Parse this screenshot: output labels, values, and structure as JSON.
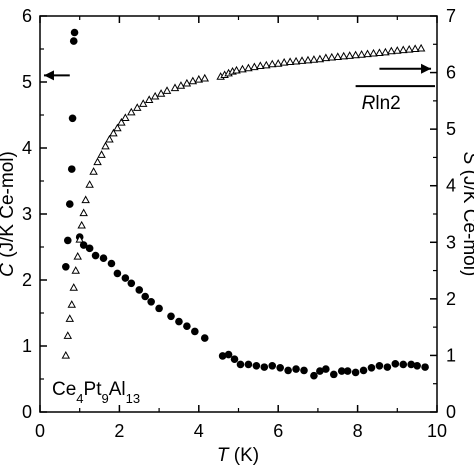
{
  "chart_data": [
    {
      "type": "scatter",
      "title": "",
      "xlabel": {
        "symbol": "T",
        "unit": " (K)"
      },
      "xlim": [
        0,
        10
      ],
      "x_ticks": [
        0,
        2,
        4,
        6,
        8,
        10
      ],
      "grid": false,
      "left_axis": {
        "label": {
          "main": "C",
          "unit": " (J/K Ce-mol)"
        },
        "lim": [
          0,
          6
        ],
        "ticks": [
          0,
          1,
          2,
          3,
          4,
          5,
          6
        ]
      },
      "right_axis": {
        "label": {
          "main": "S",
          "unit": " (J/K Ce-mol)"
        },
        "lim": [
          0,
          7
        ],
        "ticks": [
          0,
          1,
          2,
          3,
          4,
          5,
          6,
          7
        ]
      },
      "series": [
        {
          "marker": "filled-circle",
          "axis": "left",
          "color": "#000000",
          "x": [
            0.65,
            0.7,
            0.75,
            0.8,
            0.82,
            0.85,
            0.87,
            1.0,
            1.1,
            1.25,
            1.4,
            1.6,
            1.8,
            1.95,
            2.15,
            2.3,
            2.5,
            2.65,
            2.8,
            3.0,
            3.3,
            3.5,
            3.7,
            3.9,
            4.15,
            4.6,
            4.75,
            4.9,
            5.05,
            5.25,
            5.45,
            5.65,
            5.85,
            6.05,
            6.25,
            6.45,
            6.65,
            6.9,
            7.05,
            7.2,
            7.4,
            7.6,
            7.75,
            7.95,
            8.15,
            8.35,
            8.55,
            8.75,
            8.95,
            9.15,
            9.35,
            9.5,
            9.7
          ],
          "y": [
            2.2,
            2.6,
            3.15,
            3.68,
            4.45,
            5.62,
            5.75,
            2.65,
            2.53,
            2.48,
            2.37,
            2.33,
            2.25,
            2.1,
            2.03,
            1.95,
            1.85,
            1.75,
            1.67,
            1.57,
            1.45,
            1.37,
            1.3,
            1.22,
            1.12,
            0.85,
            0.87,
            0.8,
            0.72,
            0.72,
            0.7,
            0.68,
            0.7,
            0.67,
            0.63,
            0.65,
            0.63,
            0.55,
            0.62,
            0.65,
            0.57,
            0.62,
            0.62,
            0.6,
            0.63,
            0.67,
            0.7,
            0.68,
            0.73,
            0.72,
            0.72,
            0.7,
            0.68
          ]
        },
        {
          "marker": "open-triangle",
          "axis": "right",
          "color": "#000000",
          "x": [
            0.65,
            0.7,
            0.75,
            0.8,
            0.85,
            0.9,
            0.95,
            1.0,
            1.05,
            1.1,
            1.15,
            1.25,
            1.35,
            1.45,
            1.55,
            1.65,
            1.75,
            1.85,
            1.95,
            2.05,
            2.15,
            2.3,
            2.45,
            2.6,
            2.75,
            2.9,
            3.05,
            3.2,
            3.4,
            3.55,
            3.7,
            3.85,
            4.0,
            4.15,
            4.55,
            4.65,
            4.75,
            4.85,
            4.95,
            5.1,
            5.25,
            5.4,
            5.55,
            5.7,
            5.85,
            6.0,
            6.15,
            6.3,
            6.45,
            6.6,
            6.75,
            6.9,
            7.05,
            7.2,
            7.35,
            7.5,
            7.65,
            7.8,
            7.95,
            8.1,
            8.25,
            8.4,
            8.55,
            8.7,
            8.85,
            9.0,
            9.15,
            9.3,
            9.45,
            9.6
          ],
          "y": [
            1.0,
            1.35,
            1.65,
            1.9,
            2.2,
            2.5,
            2.75,
            3.05,
            3.3,
            3.52,
            3.75,
            4.02,
            4.25,
            4.42,
            4.55,
            4.7,
            4.82,
            4.93,
            5.02,
            5.12,
            5.2,
            5.3,
            5.38,
            5.45,
            5.52,
            5.58,
            5.63,
            5.68,
            5.73,
            5.77,
            5.81,
            5.85,
            5.88,
            5.9,
            5.93,
            5.96,
            5.99,
            6.02,
            6.04,
            6.06,
            6.08,
            6.1,
            6.12,
            6.13,
            6.15,
            6.16,
            6.18,
            6.19,
            6.2,
            6.21,
            6.22,
            6.23,
            6.24,
            6.26,
            6.27,
            6.28,
            6.29,
            6.3,
            6.31,
            6.32,
            6.33,
            6.34,
            6.35,
            6.36,
            6.38,
            6.39,
            6.4,
            6.41,
            6.42,
            6.43
          ]
        }
      ],
      "reference_line": {
        "label": {
          "main": "R",
          "rest": "ln2"
        },
        "axis": "right",
        "y": 5.76,
        "x_range": [
          7.95,
          9.95
        ]
      },
      "arrows": [
        {
          "direction": "left",
          "points_to_axis": "left",
          "x_range": [
            0.1,
            0.75
          ],
          "y": 5.1
        },
        {
          "direction": "right",
          "points_to_axis": "right",
          "x_range": [
            8.55,
            9.85
          ],
          "y": 5.2
        }
      ],
      "compound_label": {
        "parts": [
          {
            "text": "Ce",
            "sub": false
          },
          {
            "text": "4",
            "sub": true
          },
          {
            "text": "Pt",
            "sub": false
          },
          {
            "text": "9",
            "sub": true
          },
          {
            "text": "Al",
            "sub": false
          },
          {
            "text": "13",
            "sub": true
          }
        ]
      }
    }
  ]
}
